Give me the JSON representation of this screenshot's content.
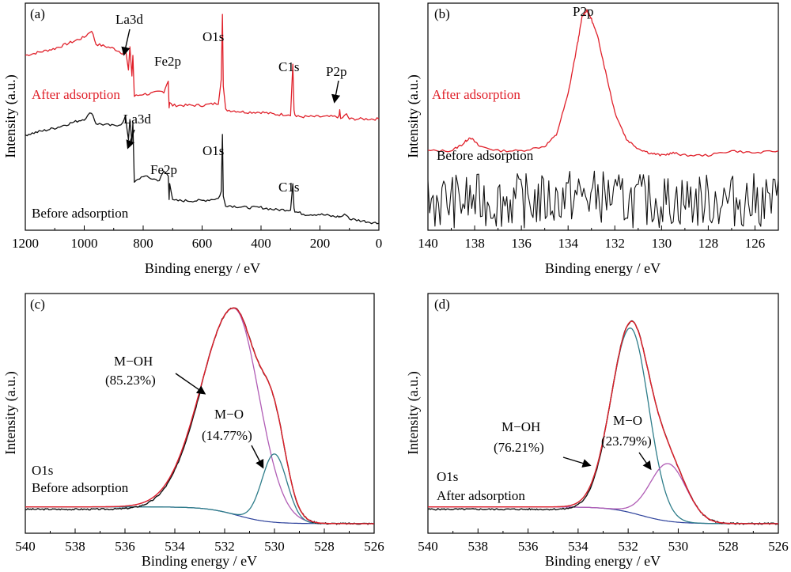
{
  "chart_data": [
    {
      "panel": "(a)",
      "type": "line",
      "xlabel": "Binding energy / eV",
      "ylabel": "Intensity (a.u.)",
      "xlim": [
        1200,
        0
      ],
      "x_reversed": true,
      "xticks": [
        1200,
        1000,
        800,
        600,
        400,
        200,
        0
      ],
      "yticks": [],
      "series": [
        {
          "name": "After adsorption",
          "color": "#e0202a",
          "x": [
            1200,
            1100,
            1000,
            975,
            960,
            900,
            870,
            860,
            850,
            845,
            838,
            835,
            830,
            800,
            780,
            745,
            730,
            715,
            712,
            710,
            700,
            650,
            600,
            545,
            535,
            531,
            528,
            520,
            450,
            400,
            350,
            300,
            292,
            288,
            285,
            280,
            250,
            200,
            150,
            135,
            133,
            130,
            110,
            100,
            50,
            0
          ],
          "y": [
            0.77,
            0.8,
            0.85,
            0.88,
            0.82,
            0.8,
            0.78,
            0.8,
            0.7,
            0.81,
            0.68,
            0.77,
            0.59,
            0.6,
            0.6,
            0.61,
            0.61,
            0.66,
            0.54,
            0.56,
            0.55,
            0.55,
            0.55,
            0.56,
            0.67,
            0.95,
            0.63,
            0.53,
            0.52,
            0.52,
            0.51,
            0.51,
            0.73,
            0.53,
            0.51,
            0.5,
            0.5,
            0.5,
            0.5,
            0.5,
            0.53,
            0.49,
            0.51,
            0.49,
            0.49,
            0.49
          ]
        },
        {
          "name": "Before adsorption",
          "color": "#111111",
          "x": [
            1200,
            1100,
            1000,
            975,
            960,
            900,
            870,
            860,
            850,
            845,
            838,
            835,
            830,
            800,
            780,
            745,
            730,
            715,
            712,
            710,
            700,
            650,
            600,
            545,
            535,
            531,
            528,
            520,
            450,
            400,
            350,
            300,
            292,
            288,
            285,
            280,
            250,
            200,
            150,
            135,
            133,
            130,
            110,
            100,
            50,
            0
          ],
          "y": [
            0.42,
            0.45,
            0.49,
            0.52,
            0.47,
            0.46,
            0.47,
            0.5,
            0.4,
            0.49,
            0.39,
            0.47,
            0.21,
            0.24,
            0.23,
            0.22,
            0.26,
            0.24,
            0.14,
            0.21,
            0.13,
            0.13,
            0.13,
            0.14,
            0.17,
            0.42,
            0.15,
            0.11,
            0.1,
            0.1,
            0.09,
            0.09,
            0.21,
            0.1,
            0.08,
            0.08,
            0.07,
            0.07,
            0.06,
            0.06,
            0.06,
            0.06,
            0.07,
            0.05,
            0.04,
            0.03
          ]
        }
      ],
      "annotations": [
        {
          "text": "La3d",
          "x": 838,
          "y": 0.98
        },
        {
          "text": "Fe2p",
          "x": 715,
          "y": 0.7
        },
        {
          "text": "O1s",
          "x": 531,
          "y": 0.97
        },
        {
          "text": "C1s",
          "x": 288,
          "y": 0.78
        },
        {
          "text": "P2p",
          "x": 133,
          "y": 0.73
        },
        {
          "text": "La3d",
          "x": 838,
          "y": 0.55
        },
        {
          "text": "Fe2p",
          "x": 715,
          "y": 0.29
        },
        {
          "text": "O1s",
          "x": 531,
          "y": 0.46
        },
        {
          "text": "C1s",
          "x": 288,
          "y": 0.24
        }
      ]
    },
    {
      "panel": "(b)",
      "type": "line",
      "xlabel": "Binding energy / eV",
      "ylabel": "Intensity (a.u.)",
      "xlim": [
        140,
        125
      ],
      "x_reversed": true,
      "xticks": [
        140,
        138,
        136,
        134,
        132,
        130,
        128,
        126
      ],
      "yticks": [],
      "series": [
        {
          "name": "After adsorption",
          "color": "#e0202a",
          "x": [
            140.0,
            139.0,
            138.5,
            138.2,
            137.8,
            137.0,
            136.0,
            135.0,
            134.5,
            134.0,
            133.6,
            133.4,
            133.2,
            133.0,
            132.7,
            132.4,
            132.0,
            131.5,
            131.0,
            130.5,
            130.0,
            129.5,
            129.0,
            128.0,
            127.0,
            126.0,
            125.0
          ],
          "y": [
            0.35,
            0.35,
            0.38,
            0.41,
            0.37,
            0.35,
            0.35,
            0.37,
            0.42,
            0.6,
            0.82,
            0.94,
            0.97,
            0.93,
            0.84,
            0.7,
            0.52,
            0.4,
            0.36,
            0.34,
            0.33,
            0.34,
            0.33,
            0.33,
            0.35,
            0.34,
            0.35
          ]
        },
        {
          "name": "Before adsorption",
          "color": "#111111",
          "noise": true,
          "baseline": 0.13,
          "amplitude": 0.12
        }
      ],
      "annotations": [
        {
          "text": "P2p",
          "x": 133.2,
          "y": 1.02
        }
      ]
    },
    {
      "panel": "(c)",
      "type": "line",
      "xlabel": "Binding energy / eV",
      "ylabel": "Intensity (a.u.)",
      "xlim": [
        540,
        526
      ],
      "x_reversed": true,
      "xticks": [
        540,
        538,
        536,
        534,
        532,
        530,
        528,
        526
      ],
      "yticks": [],
      "title_lines": [
        "O1s",
        "Before adsorption"
      ],
      "components": [
        {
          "name": "M−OH",
          "percent": "(85.23%)",
          "center": 531.6,
          "height": 0.86,
          "sigma_left": 1.32,
          "sigma_right": 0.98,
          "color": "#b05cb5"
        },
        {
          "name": "M−O",
          "percent": "(14.77%)",
          "center": 530.0,
          "height": 0.285,
          "sigma_left": 0.5,
          "sigma_right": 0.5,
          "color": "#2e7d8a"
        }
      ],
      "background_color": "#2a3f9a",
      "envelope_color": "#e0202a",
      "raw_color": "#111111"
    },
    {
      "panel": "(d)",
      "type": "line",
      "xlabel": "Binding energy / eV",
      "ylabel": "Intensity (a.u.)",
      "xlim": [
        540,
        526
      ],
      "x_reversed": true,
      "xticks": [
        540,
        538,
        536,
        534,
        532,
        530,
        528,
        526
      ],
      "yticks": [],
      "title_lines": [
        "O1s",
        "After adsorption"
      ],
      "components": [
        {
          "name": "M−OH",
          "percent": "(76.21%)",
          "center": 531.9,
          "height": 0.77,
          "sigma_left": 0.78,
          "sigma_right": 0.72,
          "color": "#2e7d8a"
        },
        {
          "name": "M−O",
          "percent": "(23.79%)",
          "center": 530.4,
          "height": 0.24,
          "sigma_left": 0.72,
          "sigma_right": 0.72,
          "color": "#b05cb5"
        }
      ],
      "background_color": "#2a3f9a",
      "envelope_color": "#e0202a",
      "raw_color": "#111111"
    }
  ]
}
